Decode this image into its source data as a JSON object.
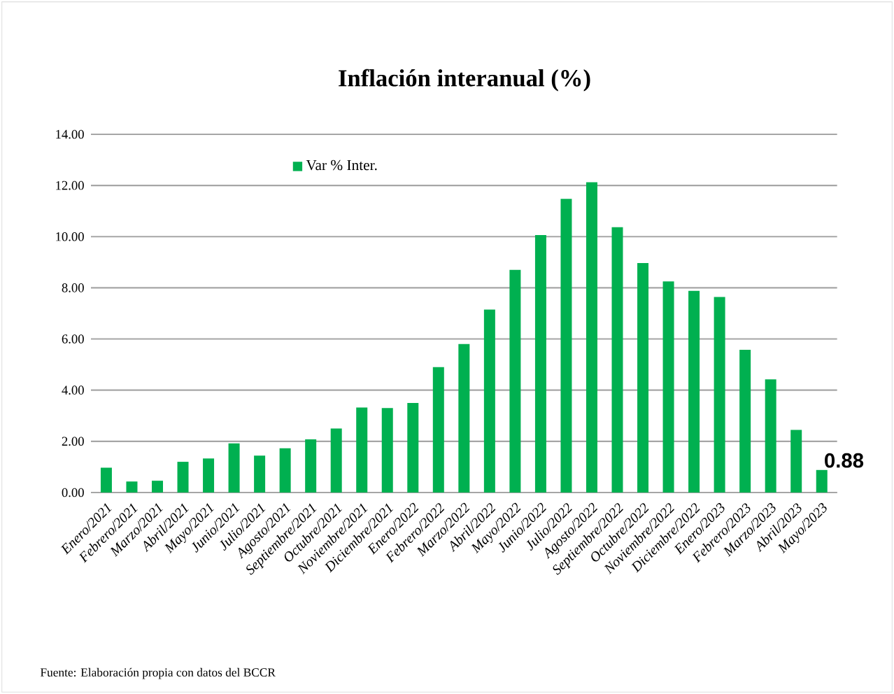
{
  "chart_data": {
    "type": "bar",
    "title": "Inflación interanual  (%)",
    "categories": [
      "Enero/2021",
      "Febrero/2021",
      "Marzo/2021",
      "Abril/2021",
      "Mayo/2021",
      "Junio/2021",
      "Julio/2021",
      "Agosto/2021",
      "Septiembre/2021",
      "Octubre/2021",
      "Noviembre/2021",
      "Diciembre/2021",
      "Enero/2022",
      "Febrero/2022",
      "Marzo/2022",
      "Abril/2022",
      "Mayo/2022",
      "Junio/2022",
      "Julio/2022",
      "Agosto/2022",
      "Septiembre/2022",
      "Octubre/2022",
      "Noviembre/2022",
      "Diciembre/2022",
      "Enero/2023",
      "Febrero/2023",
      "Marzo/2023",
      "Abril/2023",
      "Mayo/2023"
    ],
    "series": [
      {
        "name": "Var % Inter.",
        "color": "#00b050",
        "values": [
          0.97,
          0.43,
          0.46,
          1.2,
          1.33,
          1.92,
          1.44,
          1.73,
          2.08,
          2.5,
          3.32,
          3.3,
          3.5,
          4.9,
          5.8,
          7.15,
          8.7,
          10.06,
          11.48,
          12.13,
          10.37,
          8.97,
          8.25,
          7.88,
          7.64,
          5.58,
          4.42,
          2.45,
          0.88
        ],
        "value_labels": [
          null,
          null,
          null,
          null,
          null,
          null,
          null,
          null,
          null,
          null,
          null,
          null,
          null,
          null,
          null,
          null,
          null,
          null,
          null,
          null,
          null,
          null,
          null,
          null,
          null,
          null,
          null,
          null,
          "0.88"
        ]
      }
    ],
    "ylim": [
      0,
      14
    ],
    "yticks": [
      {
        "value": 0,
        "label": "0.00"
      },
      {
        "value": 2,
        "label": "2.00"
      },
      {
        "value": 4,
        "label": "4.00"
      },
      {
        "value": 6,
        "label": "6.00"
      },
      {
        "value": 8,
        "label": "8.00"
      },
      {
        "value": 10,
        "label": "10.00"
      },
      {
        "value": 12,
        "label": "12.00"
      },
      {
        "value": 14,
        "label": "14.00"
      }
    ],
    "grid": "y",
    "legend": "top",
    "annotations": [
      "Fuente: Elaboración propia con datos del BCCR"
    ]
  }
}
